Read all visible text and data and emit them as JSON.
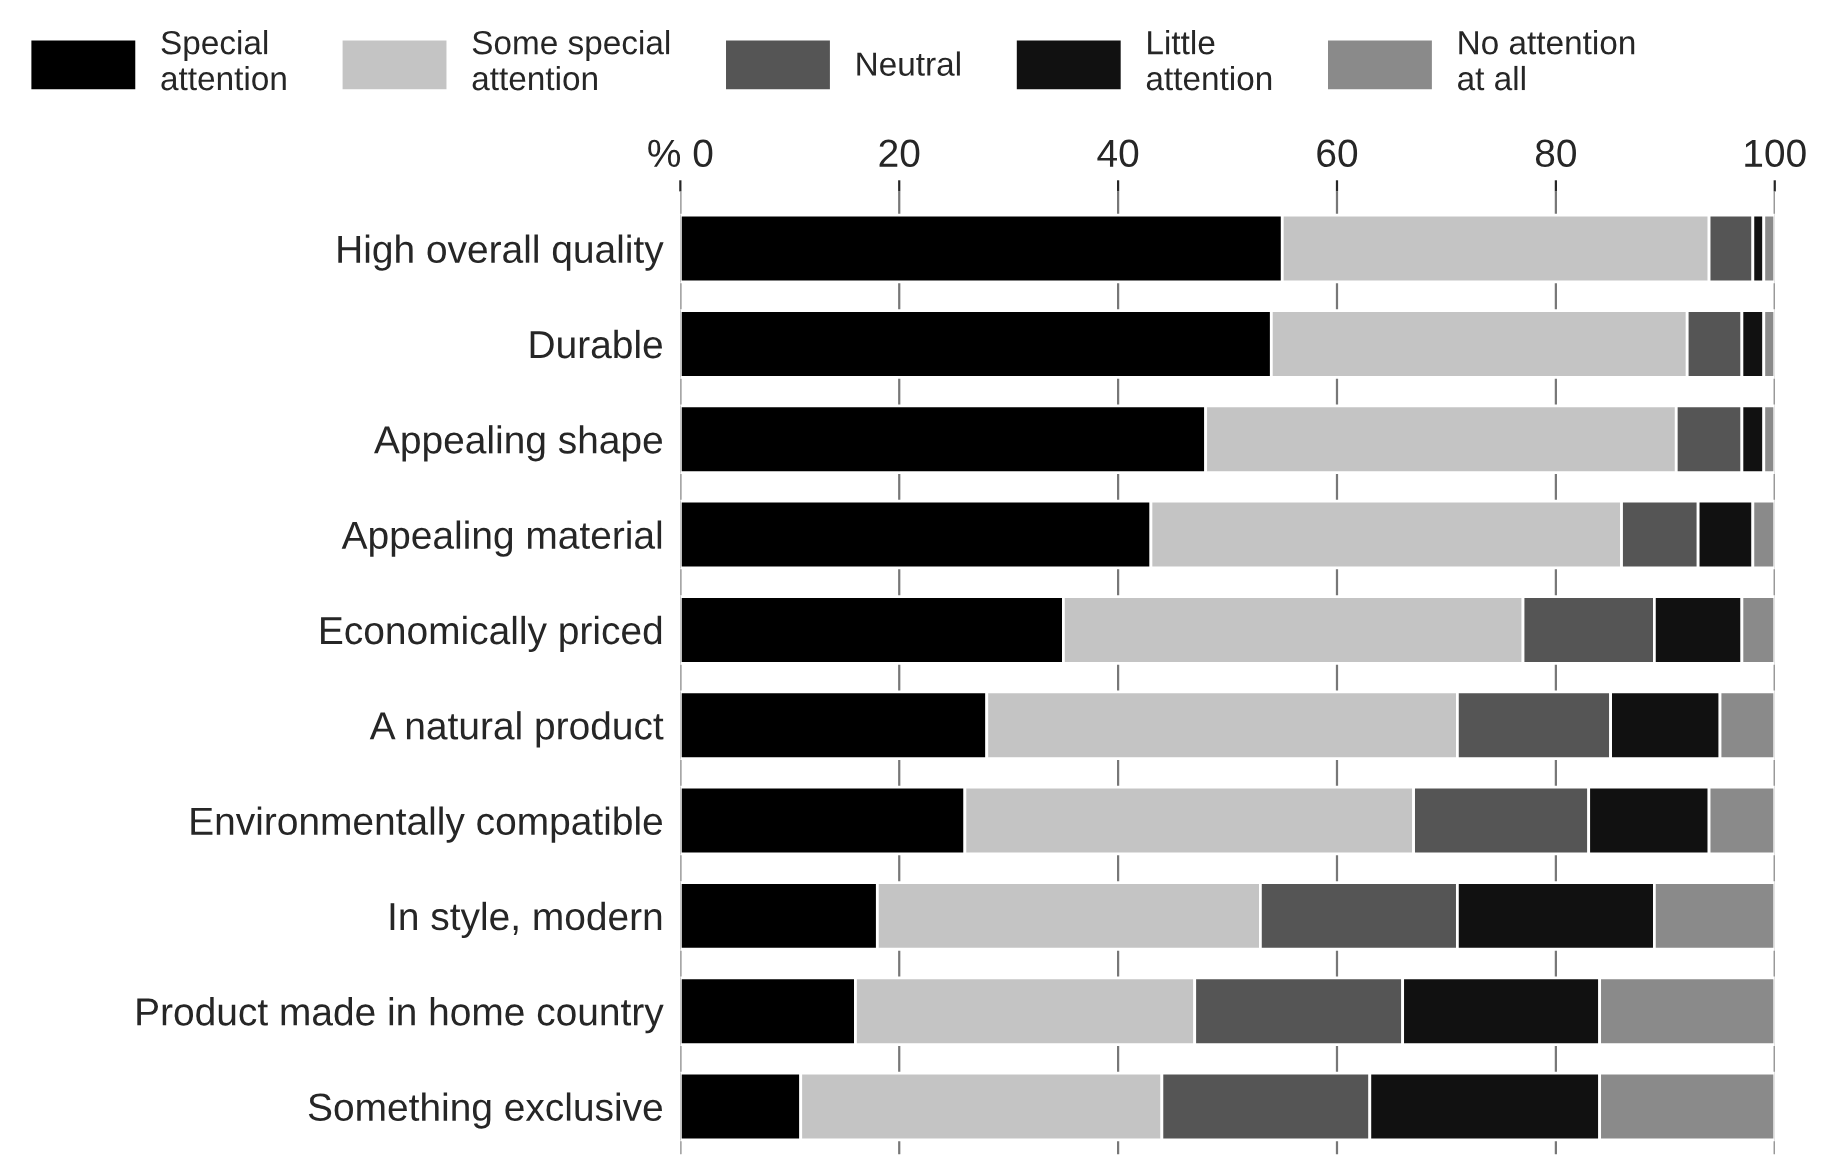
{
  "chart_data": {
    "type": "bar",
    "orientation": "horizontal",
    "stacked": true,
    "categories": [
      "High overall quality",
      "Durable",
      "Appealing shape",
      "Appealing material",
      "Economically priced",
      "A natural product",
      "Environmentally compatible",
      "In style, modern",
      "Product made in home country",
      "Something exclusive"
    ],
    "series": [
      {
        "name": "Special\nattention",
        "color": "#000000",
        "values": [
          55,
          54,
          48,
          43,
          35,
          28,
          26,
          18,
          16,
          11
        ]
      },
      {
        "name": "Some special\nattention",
        "color": "#c4c4c4",
        "values": [
          39,
          38,
          43,
          43,
          42,
          43,
          41,
          35,
          31,
          33
        ]
      },
      {
        "name": "Neutral",
        "color": "#555555",
        "values": [
          4,
          5,
          6,
          7,
          12,
          14,
          16,
          18,
          19,
          19
        ]
      },
      {
        "name": "Little\nattention",
        "color": "#111111",
        "values": [
          1,
          2,
          2,
          5,
          8,
          10,
          11,
          18,
          18,
          21
        ]
      },
      {
        "name": "No attention\nat all",
        "color": "#8a8a8a",
        "values": [
          1,
          1,
          1,
          2,
          3,
          5,
          6,
          11,
          16,
          16
        ]
      }
    ],
    "xlim": [
      0,
      100
    ],
    "xticks": [
      {
        "value": 0,
        "label": "% 0"
      },
      20,
      40,
      60,
      80,
      100
    ],
    "grid": "x",
    "legend": "top"
  }
}
